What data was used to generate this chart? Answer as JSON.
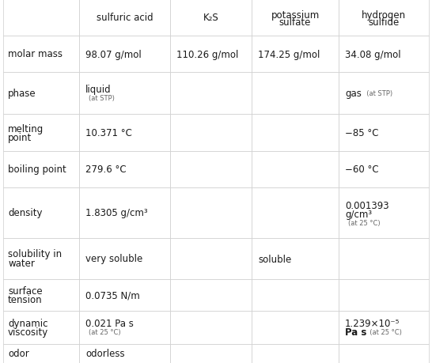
{
  "col_headers": [
    "",
    "sulfuric acid",
    "K₂S",
    "potassium\nsulfate",
    "hydrogen\nsulfide"
  ],
  "bg_color": "#ffffff",
  "grid_color": "#cccccc",
  "text_color": "#1a1a1a",
  "small_text_color": "#666666",
  "fig_width": 5.46,
  "fig_height": 4.6,
  "dpi": 100
}
